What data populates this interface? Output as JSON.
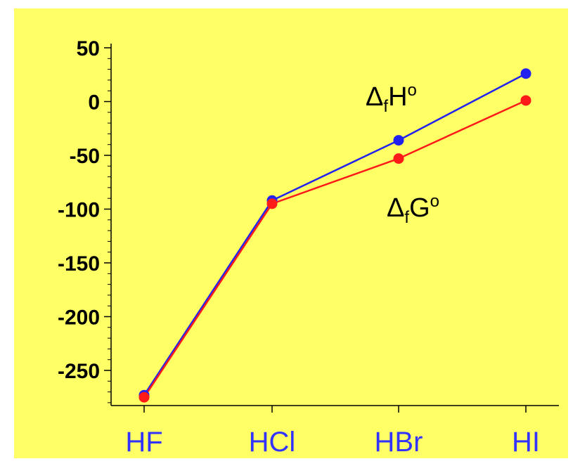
{
  "chart_data": {
    "type": "line",
    "categories": [
      "HF",
      "HCl",
      "HBr",
      "HI"
    ],
    "ylim": [
      -280,
      50
    ],
    "yticks": [
      50,
      0,
      -50,
      -100,
      -150,
      -200,
      -250
    ],
    "ytick_labels": [
      "50",
      "0",
      "-50",
      "-100",
      "-150",
      "-200",
      "-250"
    ],
    "grid": false,
    "series": [
      {
        "key": "h",
        "name": "ΔfHo",
        "label_parts": {
          "delta": "Δ",
          "sub": "f",
          "main": "H",
          "sup": "o"
        },
        "color": "#2222ee",
        "values": [
          -273,
          -92,
          -36,
          26
        ]
      },
      {
        "key": "g",
        "name": "ΔfGo",
        "label_parts": {
          "delta": "Δ",
          "sub": "f",
          "main": "G",
          "sup": "o"
        },
        "color": "#ff1a1a",
        "values": [
          -275,
          -95,
          -53,
          1
        ]
      }
    ]
  },
  "colors": {
    "background": "#ffff66",
    "axis": "#000000",
    "category_text": "#3333ff"
  }
}
